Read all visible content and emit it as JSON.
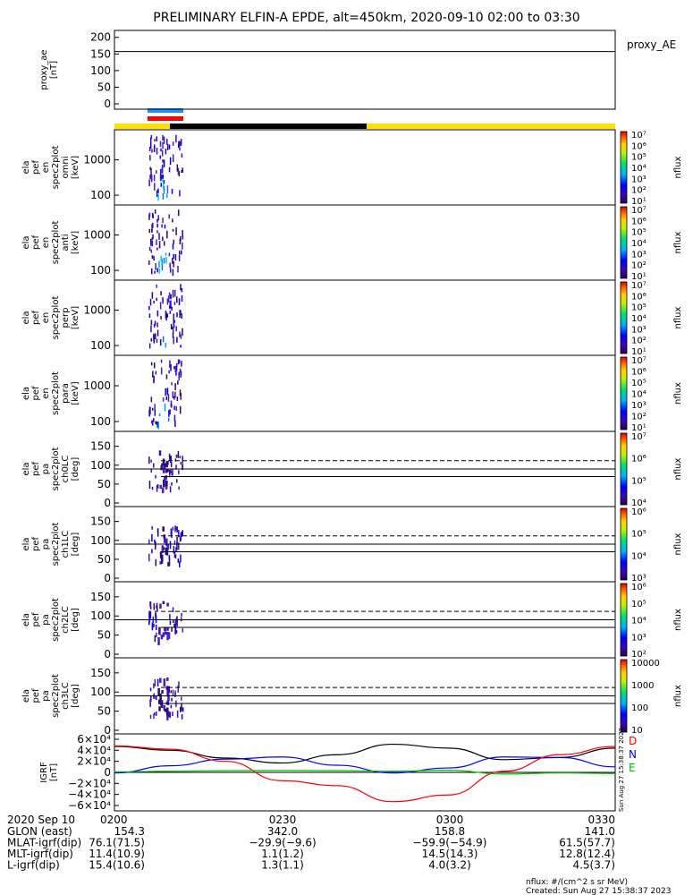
{
  "title": "PRELIMINARY ELFIN-A EPDE, alt=450km, 2020-09-10 02:00 to 03:30",
  "colors": {
    "trace_black": "#000000",
    "trace_blue": "#0000ff",
    "trace_red": "#ff0000",
    "trace_green": "#00c000",
    "bar_yellow": "#ffe000",
    "bar_black": "#000000",
    "bar_blue": "#1e90ff",
    "bar_red": "#ff0000"
  },
  "chart_data": [
    {
      "id": "proxy_ae",
      "type": "line",
      "ylabel": "proxy_ae\n[nT]",
      "legend": "proxy_AE",
      "y_ticks": [
        "200",
        "150",
        "100",
        "50",
        "0"
      ],
      "ylim": [
        0,
        210
      ],
      "series": [
        {
          "name": "proxy_AE",
          "x": [
            "02:00",
            "03:30"
          ],
          "values": [
            157,
            157
          ]
        }
      ]
    },
    {
      "id": "spec_omni",
      "type": "heatmap",
      "ylabel": "ela\npef\nen\nspec2plot\nomni\n[keV]",
      "y_ticks": [
        "1000",
        "100"
      ],
      "scale": "log",
      "colorbar_label": "nflux",
      "colorbar_ticks": [
        "10⁷",
        "10⁶",
        "10⁵",
        "10⁴",
        "10³",
        "10²",
        "10¹"
      ]
    },
    {
      "id": "spec_anti",
      "type": "heatmap",
      "ylabel": "ela\npef\nen\nspec2plot\nanti\n[keV]",
      "y_ticks": [
        "1000",
        "100"
      ],
      "scale": "log",
      "colorbar_label": "nflux",
      "colorbar_ticks": [
        "10⁷",
        "10⁶",
        "10⁵",
        "10⁴",
        "10³",
        "10²",
        "10¹"
      ]
    },
    {
      "id": "spec_perp",
      "type": "heatmap",
      "ylabel": "ela\npef\nen\nspec2plot\nperp\n[keV]",
      "y_ticks": [
        "1000",
        "100"
      ],
      "scale": "log",
      "colorbar_label": "nflux",
      "colorbar_ticks": [
        "10⁷",
        "10⁶",
        "10⁵",
        "10⁴",
        "10³",
        "10²",
        "10¹"
      ]
    },
    {
      "id": "spec_para",
      "type": "heatmap",
      "ylabel": "ela\npef\nen\nspec2plot\npara\n[keV]",
      "y_ticks": [
        "1000",
        "100"
      ],
      "scale": "log",
      "colorbar_label": "nflux",
      "colorbar_ticks": [
        "10⁷",
        "10⁶",
        "10⁵",
        "10⁴",
        "10³",
        "10²",
        "10¹"
      ]
    },
    {
      "id": "pa_ch0",
      "type": "heatmap",
      "ylabel": "ela\npef\npa\nspec2plot\nch0LC\n[deg]",
      "y_ticks": [
        "150",
        "100",
        "50",
        "0"
      ],
      "ylim": [
        0,
        180
      ],
      "colorbar_label": "nflux",
      "colorbar_ticks": [
        "10⁷",
        "10⁶",
        "10⁵",
        "10⁴"
      ]
    },
    {
      "id": "pa_ch1",
      "type": "heatmap",
      "ylabel": "ela\npef\npa\nspec2plot\nch1LC\n[deg]",
      "y_ticks": [
        "150",
        "100",
        "50",
        "0"
      ],
      "ylim": [
        0,
        180
      ],
      "colorbar_label": "nflux",
      "colorbar_ticks": [
        "10⁶",
        "10⁵",
        "10⁴",
        "10³"
      ]
    },
    {
      "id": "pa_ch2",
      "type": "heatmap",
      "ylabel": "ela\npef\npa\nspec2plot\nch2LC\n[deg]",
      "y_ticks": [
        "150",
        "100",
        "50",
        "0"
      ],
      "ylim": [
        0,
        180
      ],
      "colorbar_label": "nflux",
      "colorbar_ticks": [
        "10⁶",
        "10⁵",
        "10⁴",
        "10³",
        "10²"
      ]
    },
    {
      "id": "pa_ch3",
      "type": "heatmap",
      "ylabel": "ela\npef\npa\nspec2plot\nch3LC\n[deg]",
      "y_ticks": [
        "150",
        "100",
        "50",
        "0"
      ],
      "ylim": [
        0,
        180
      ],
      "colorbar_label": "nflux",
      "colorbar_ticks": [
        "10000",
        "1000",
        "100",
        "10"
      ]
    },
    {
      "id": "igrf",
      "type": "line",
      "ylabel": "IGRF\n[nT]",
      "y_ticks": [
        "6×10⁴",
        "4×10⁴",
        "2×10⁴",
        "0",
        "−2×10⁴",
        "−4×10⁴",
        "−6×10⁴"
      ],
      "ylim": [
        -60000,
        60000
      ],
      "legend": [
        "D",
        "N",
        "E"
      ],
      "x": [
        0,
        10,
        20,
        30,
        40,
        50,
        60,
        70,
        80,
        90
      ],
      "series": [
        {
          "name": "",
          "values": [
            47000,
            40000,
            26000,
            17000,
            32000,
            51000,
            44000,
            23000,
            27000,
            44000
          ]
        },
        {
          "name": "N",
          "values": [
            -1000,
            12000,
            24000,
            28000,
            13000,
            -1000,
            8000,
            28000,
            27000,
            10000
          ]
        },
        {
          "name": "D",
          "values": [
            48000,
            42000,
            20000,
            -15000,
            -24000,
            -53000,
            -41000,
            2000,
            32000,
            47000
          ]
        },
        {
          "name": "E",
          "values": [
            1000,
            2000,
            3000,
            3500,
            3000,
            2000,
            4000,
            -3000,
            -1000,
            -2000
          ]
        }
      ]
    }
  ],
  "time_axis": {
    "date": "2020 Sep 10",
    "labels": [
      "0200",
      "0230",
      "0300",
      "0330"
    ]
  },
  "orbit_table": [
    {
      "name": "GLON (east)",
      "values": [
        "154.3",
        "342.0",
        "158.8",
        "141.0"
      ]
    },
    {
      "name": "MLAT-igrf(dip)",
      "values": [
        "76.1(71.5)",
        "−29.9(−9.6)",
        "−59.9(−54.9)",
        "61.5(57.7)"
      ]
    },
    {
      "name": "MLT-igrf(dip)",
      "values": [
        "11.4(10.9)",
        "1.1(1.2)",
        "14.5(14.3)",
        "12.8(12.4)"
      ]
    },
    {
      "name": "L-igrf(dip)",
      "values": [
        "15.4(10.6)",
        "1.3(1.1)",
        "4.0(3.2)",
        "4.5(3.7)"
      ]
    }
  ],
  "footer": {
    "units": "nflux: #/(cm^2 s sr MeV)",
    "created": "Created: Sun Aug 27 15:38:37 2023",
    "side_stamp": "Sun Aug 27 15:38:37 2023"
  }
}
